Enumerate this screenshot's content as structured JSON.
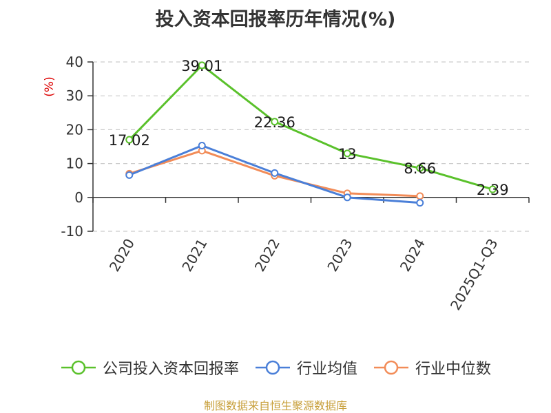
{
  "title": "投入资本回报率历年情况(%)",
  "source": "制图数据来自恒生聚源数据库",
  "colors": {
    "company": "#5ac12b",
    "industry_avg": "#4a7fd8",
    "industry_median": "#f28c58"
  },
  "chart_data": {
    "type": "line",
    "categories": [
      "2020",
      "2021",
      "2022",
      "2023",
      "2024",
      "2025Q1-Q3"
    ],
    "ylabel": "(%)",
    "ylim": [
      -10,
      40
    ],
    "yticks": [
      "40",
      "30",
      "20",
      "10",
      "0",
      "-10"
    ],
    "grid": true,
    "legend_position": "bottom",
    "series": [
      {
        "name": "公司投入资本回报率",
        "key": "company",
        "values": [
          17.02,
          39.01,
          22.36,
          13,
          8.66,
          2.39
        ],
        "labels": [
          "17.02",
          "39.01",
          "22.36",
          "13",
          "8.66",
          "2.39"
        ]
      },
      {
        "name": "行业均值",
        "key": "industry_avg",
        "values": [
          6.6,
          15.3,
          7.2,
          0,
          -1.6,
          null
        ]
      },
      {
        "name": "行业中位数",
        "key": "industry_median",
        "values": [
          7,
          13.8,
          6.4,
          1.2,
          0.4,
          null
        ]
      }
    ]
  }
}
